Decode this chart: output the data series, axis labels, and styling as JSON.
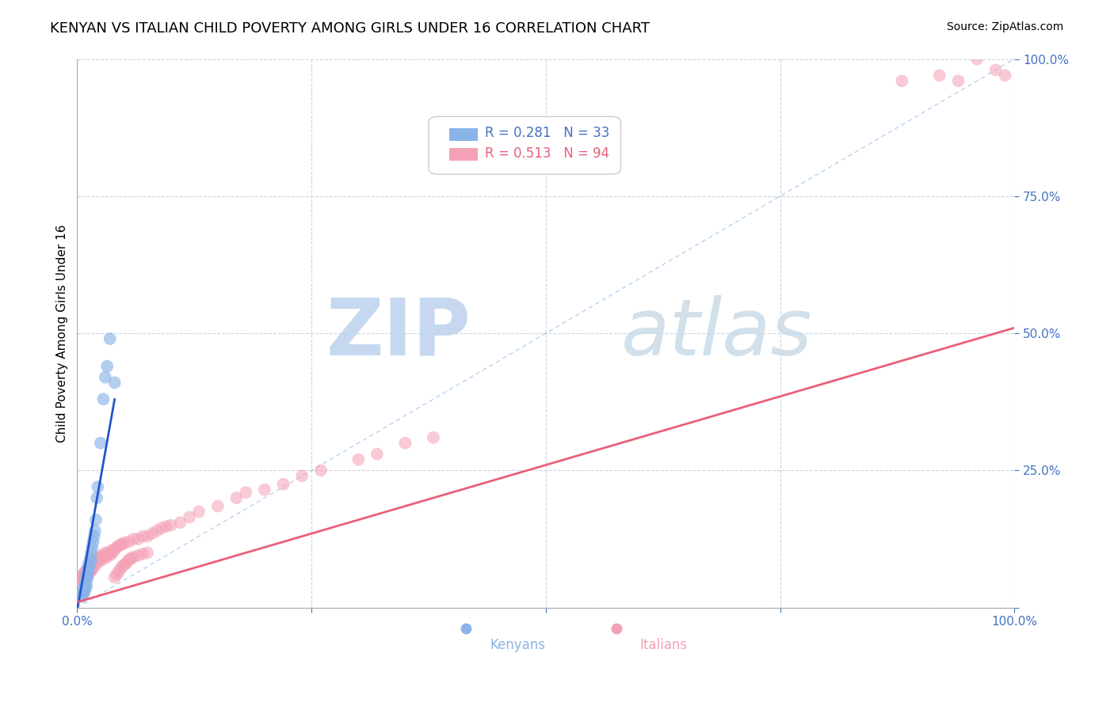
{
  "title": "KENYAN VS ITALIAN CHILD POVERTY AMONG GIRLS UNDER 16 CORRELATION CHART",
  "source": "Source: ZipAtlas.com",
  "ylabel": "Child Poverty Among Girls Under 16",
  "axis_color": "#4472c4",
  "title_fontsize": 13,
  "source_fontsize": 10,
  "ylabel_fontsize": 11,
  "legend_r_kenyan": "R = 0.281",
  "legend_n_kenyan": "N = 33",
  "legend_r_italian": "R = 0.513",
  "legend_n_italian": "N = 94",
  "kenyan_color": "#8ab4e8",
  "italian_color": "#f4a0b5",
  "kenyan_line_color": "#2255cc",
  "italian_line_color": "#e8607a",
  "watermark_zip_color": "#c8d8f0",
  "watermark_atlas_color": "#d0dce8",
  "grid_color": "#c8d0dc",
  "background_color": "#ffffff",
  "kenyan_x": [
    0.005,
    0.005,
    0.006,
    0.007,
    0.007,
    0.008,
    0.008,
    0.009,
    0.009,
    0.01,
    0.01,
    0.01,
    0.011,
    0.011,
    0.012,
    0.012,
    0.013,
    0.014,
    0.015,
    0.015,
    0.016,
    0.017,
    0.018,
    0.019,
    0.02,
    0.021,
    0.022,
    0.025,
    0.028,
    0.03,
    0.032,
    0.035,
    0.04
  ],
  "kenyan_y": [
    0.02,
    0.025,
    0.03,
    0.025,
    0.035,
    0.03,
    0.04,
    0.035,
    0.045,
    0.04,
    0.05,
    0.06,
    0.055,
    0.07,
    0.065,
    0.08,
    0.075,
    0.09,
    0.085,
    0.1,
    0.11,
    0.12,
    0.13,
    0.14,
    0.16,
    0.2,
    0.22,
    0.3,
    0.38,
    0.42,
    0.44,
    0.49,
    0.41
  ],
  "italian_x": [
    0.004,
    0.005,
    0.005,
    0.006,
    0.006,
    0.007,
    0.007,
    0.008,
    0.008,
    0.009,
    0.009,
    0.01,
    0.01,
    0.011,
    0.011,
    0.012,
    0.012,
    0.013,
    0.013,
    0.014,
    0.014,
    0.015,
    0.015,
    0.016,
    0.016,
    0.017,
    0.018,
    0.019,
    0.02,
    0.02,
    0.022,
    0.023,
    0.025,
    0.025,
    0.027,
    0.028,
    0.03,
    0.03,
    0.032,
    0.033,
    0.035,
    0.036,
    0.037,
    0.038,
    0.04,
    0.042,
    0.044,
    0.046,
    0.048,
    0.05,
    0.055,
    0.06,
    0.065,
    0.07,
    0.075,
    0.08,
    0.085,
    0.09,
    0.095,
    0.1,
    0.11,
    0.12,
    0.13,
    0.15,
    0.17,
    0.18,
    0.2,
    0.22,
    0.24,
    0.26,
    0.3,
    0.32,
    0.35,
    0.38,
    0.88,
    0.92,
    0.94,
    0.96,
    0.98,
    0.99,
    0.04,
    0.042,
    0.044,
    0.046,
    0.048,
    0.05,
    0.052,
    0.054,
    0.056,
    0.058,
    0.06,
    0.065,
    0.07,
    0.075
  ],
  "italian_y": [
    0.05,
    0.045,
    0.055,
    0.05,
    0.06,
    0.05,
    0.06,
    0.05,
    0.065,
    0.055,
    0.065,
    0.055,
    0.068,
    0.06,
    0.07,
    0.06,
    0.072,
    0.065,
    0.075,
    0.065,
    0.075,
    0.068,
    0.078,
    0.07,
    0.08,
    0.072,
    0.08,
    0.082,
    0.078,
    0.088,
    0.085,
    0.09,
    0.085,
    0.095,
    0.09,
    0.095,
    0.09,
    0.1,
    0.095,
    0.1,
    0.095,
    0.1,
    0.105,
    0.1,
    0.105,
    0.11,
    0.112,
    0.115,
    0.115,
    0.118,
    0.12,
    0.125,
    0.125,
    0.13,
    0.13,
    0.135,
    0.14,
    0.145,
    0.148,
    0.15,
    0.155,
    0.165,
    0.175,
    0.185,
    0.2,
    0.21,
    0.215,
    0.225,
    0.24,
    0.25,
    0.27,
    0.28,
    0.3,
    0.31,
    0.96,
    0.97,
    0.96,
    1.0,
    0.98,
    0.97,
    0.055,
    0.06,
    0.065,
    0.07,
    0.075,
    0.078,
    0.08,
    0.085,
    0.088,
    0.09,
    0.092,
    0.095,
    0.098,
    0.1
  ],
  "xlim": [
    0.0,
    1.0
  ],
  "ylim": [
    0.0,
    1.0
  ],
  "xticks": [
    0.0,
    0.25,
    0.5,
    0.75,
    1.0
  ],
  "yticks": [
    0.0,
    0.25,
    0.5,
    0.75,
    1.0
  ],
  "xtick_labels_show": [
    "0.0%",
    "100.0%"
  ],
  "ytick_labels_right": [
    "25.0%",
    "50.0%",
    "75.0%",
    "100.0%"
  ],
  "kenyan_line_x0": 0.0,
  "kenyan_line_y0": -0.005,
  "kenyan_line_x1": 0.04,
  "kenyan_line_y1": 0.38,
  "italian_line_x0": 0.0,
  "italian_line_y0": 0.01,
  "italian_line_x1": 1.0,
  "italian_line_y1": 0.51
}
